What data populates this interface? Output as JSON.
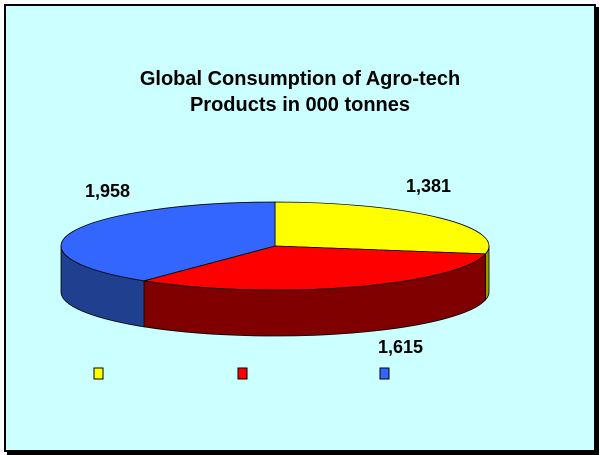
{
  "chart_data": {
    "type": "pie",
    "title": [
      "Global Consumption of Agro-tech",
      "Products in 000 tonnes"
    ],
    "categories": [
      "",
      "",
      ""
    ],
    "values": [
      1381,
      1615,
      1958
    ],
    "data_labels": [
      "1,381",
      "1,615",
      "1,958"
    ],
    "colors": [
      "#ffff00",
      "#ff0000",
      "#3366ff"
    ],
    "side_colors": [
      "#999900",
      "#800000",
      "#1f3f8f"
    ],
    "style": "3d-pie",
    "legend": "bottom"
  },
  "colors": {
    "background": "#ccffff",
    "border": "#000000"
  }
}
